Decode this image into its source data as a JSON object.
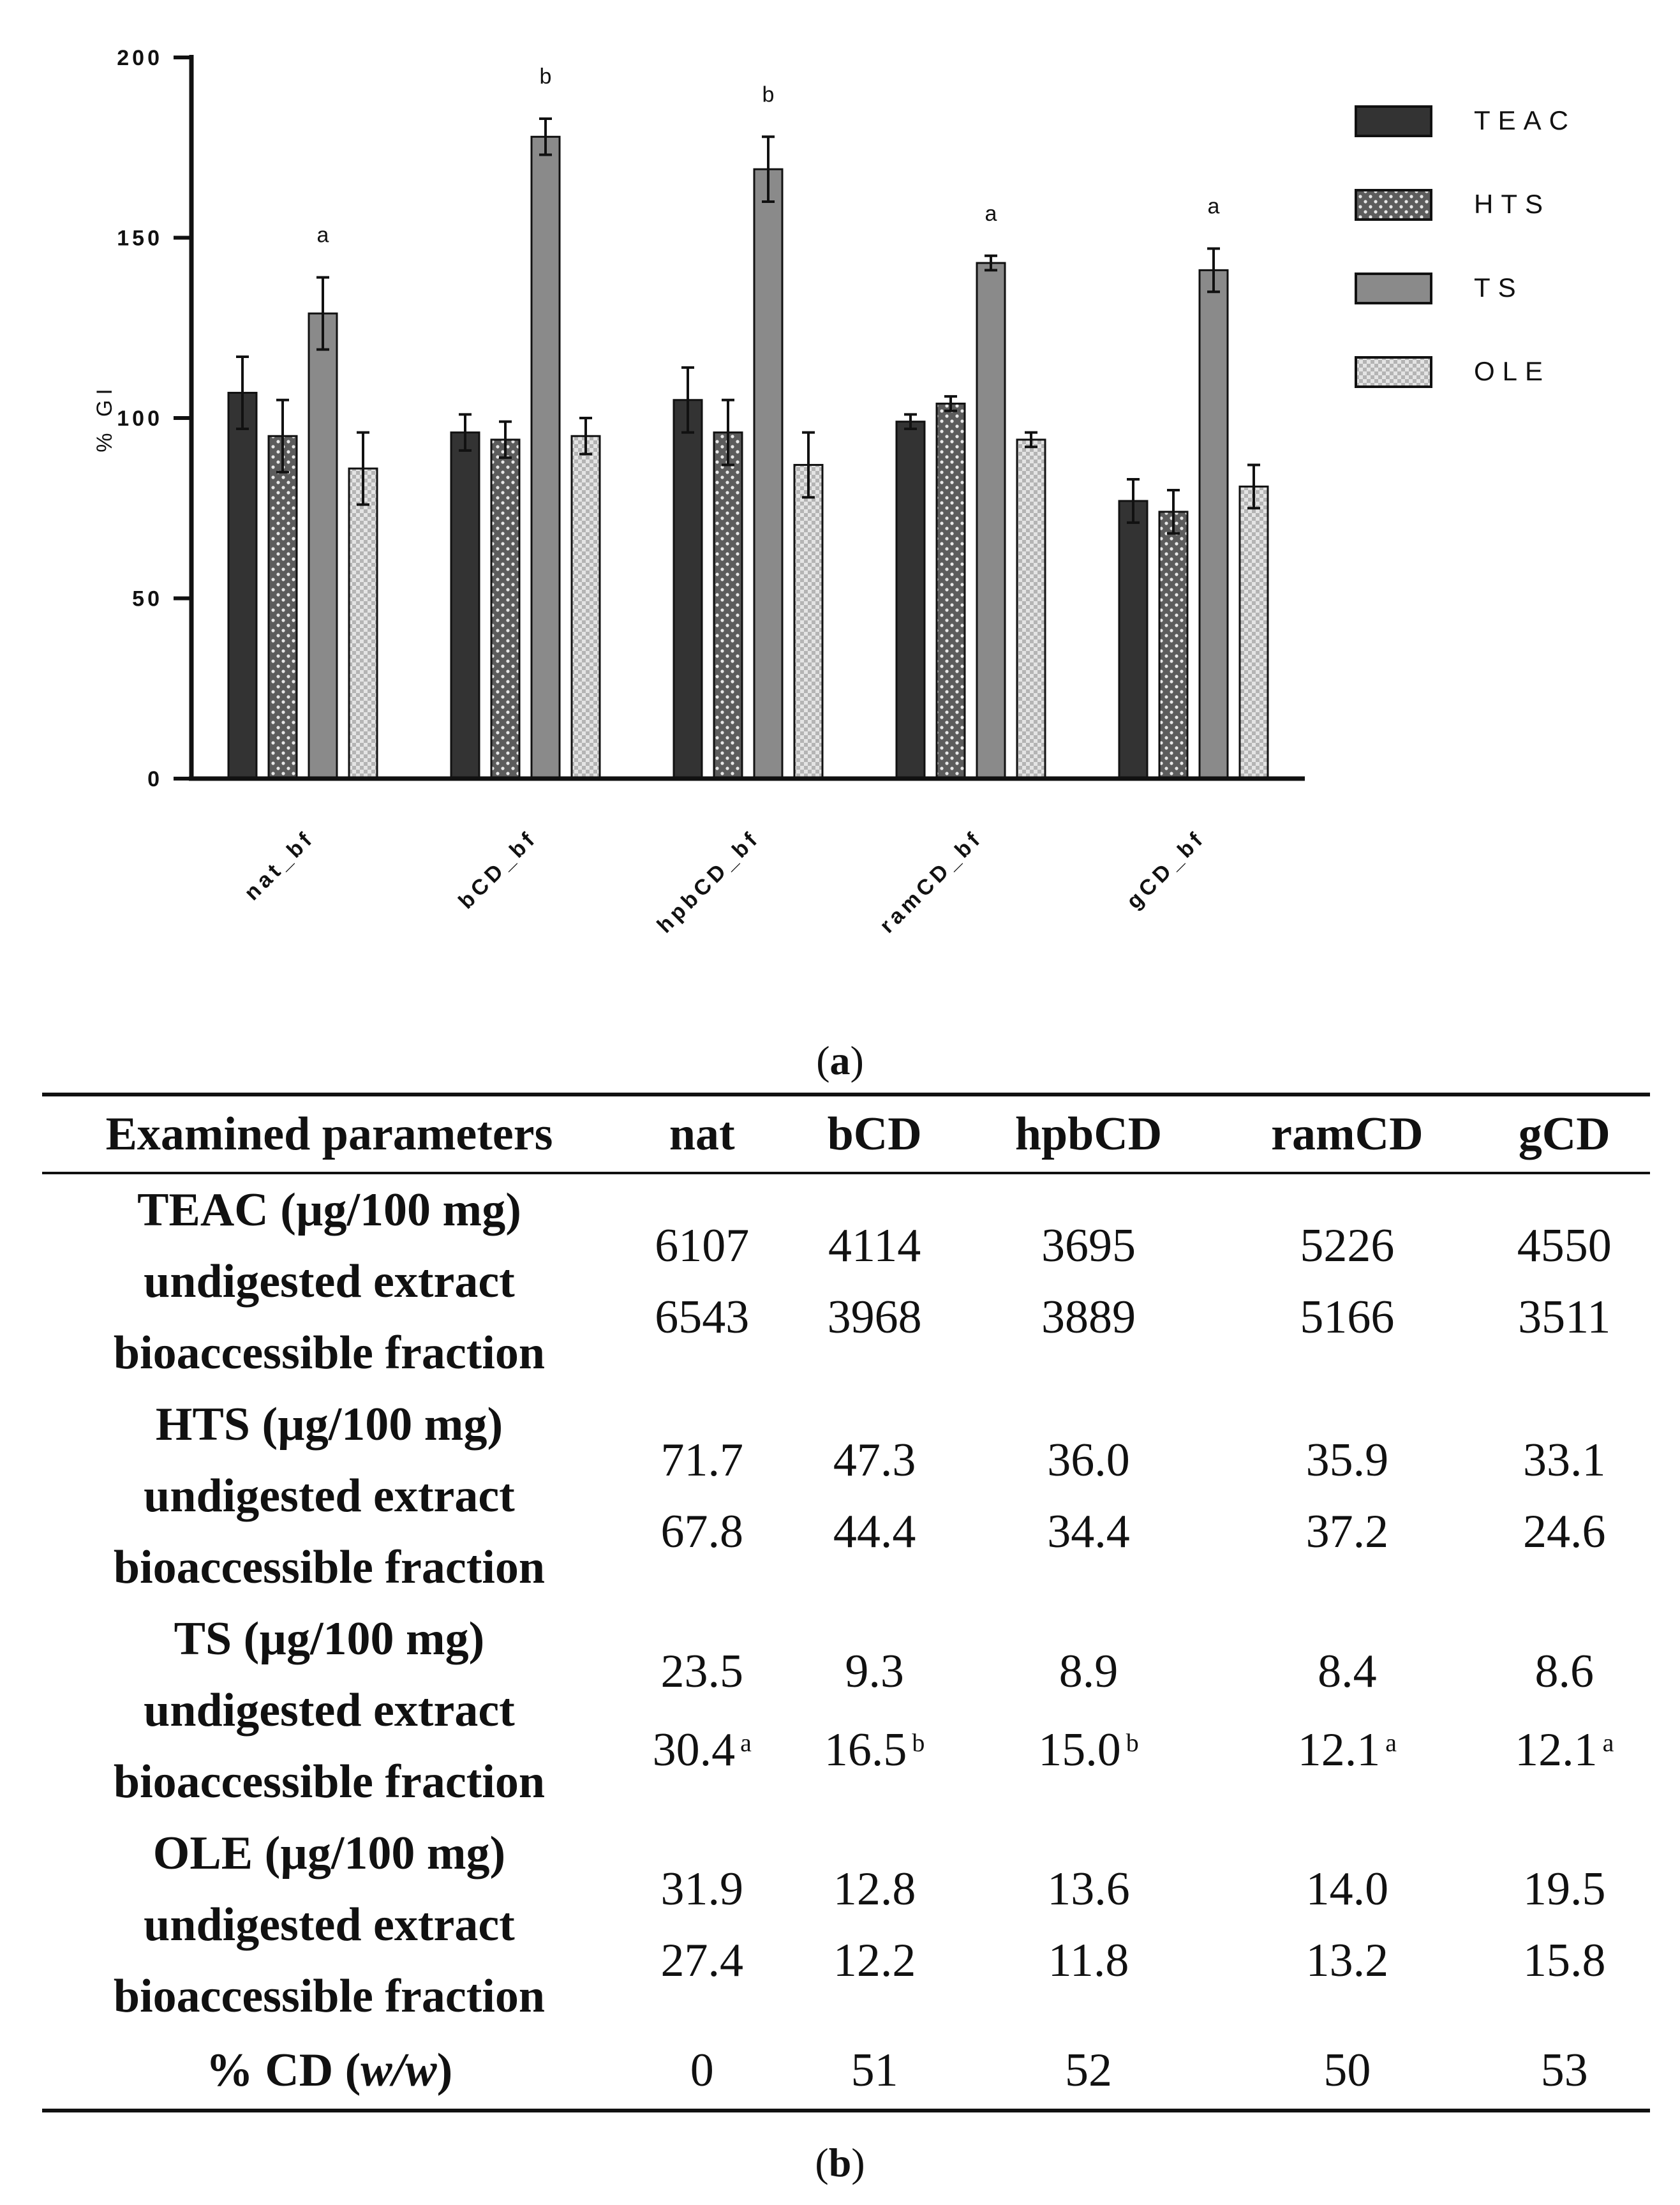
{
  "chart_data": {
    "type": "bar",
    "ylabel": "% GI",
    "ylim": [
      0,
      200
    ],
    "yticks": [
      0,
      50,
      100,
      150,
      200
    ],
    "categories": [
      "nat_bf",
      "bCD_bf",
      "hpbCD_bf",
      "ramCD_bf",
      "gCD_bf"
    ],
    "series": [
      {
        "name": "TEAC",
        "color": "#333333",
        "pattern": "solid",
        "values": [
          107,
          96,
          105,
          99,
          77
        ],
        "errors": [
          10,
          5,
          9,
          2,
          6
        ]
      },
      {
        "name": "HTS",
        "color": "#666666",
        "pattern": "dots",
        "values": [
          95,
          94,
          96,
          104,
          74
        ],
        "errors": [
          10,
          5,
          9,
          2,
          6
        ]
      },
      {
        "name": "TS",
        "color": "#8a8a8a",
        "pattern": "solid",
        "values": [
          129,
          178,
          169,
          143,
          141
        ],
        "errors": [
          10,
          5,
          9,
          2,
          6
        ]
      },
      {
        "name": "OLE",
        "color": "#c8c8c8",
        "pattern": "checker",
        "values": [
          86,
          95,
          87,
          94,
          81
        ],
        "errors": [
          10,
          5,
          9,
          2,
          6
        ]
      }
    ],
    "annotations": [
      {
        "category": "nat_bf",
        "series": "TS",
        "text": "a"
      },
      {
        "category": "bCD_bf",
        "series": "TS",
        "text": "b"
      },
      {
        "category": "hpbCD_bf",
        "series": "TS",
        "text": "b"
      },
      {
        "category": "ramCD_bf",
        "series": "TS",
        "text": "a"
      },
      {
        "category": "gCD_bf",
        "series": "TS",
        "text": "a"
      }
    ],
    "legend_position": "top-right"
  },
  "labels": {
    "panel_a": "a",
    "panel_b": "b"
  },
  "table": {
    "headers": [
      "Examined parameters",
      "nat",
      "bCD",
      "hpbCD",
      "ramCD",
      "gCD"
    ],
    "groups": [
      {
        "title": "TEAC (µg/100 mg)",
        "row1_label": "undigested extract",
        "row2_label": "bioaccessible fraction",
        "undigested": [
          "6107",
          "4114",
          "3695",
          "5226",
          "4550"
        ],
        "bioaccessible": [
          "6543",
          "3968",
          "3889",
          "5166",
          "3511"
        ],
        "sig": [
          "",
          "",
          "",
          "",
          ""
        ]
      },
      {
        "title": "HTS (µg/100 mg)",
        "row1_label": "undigested extract",
        "row2_label": "bioaccessible fraction",
        "undigested": [
          "71.7",
          "47.3",
          "36.0",
          "35.9",
          "33.1"
        ],
        "bioaccessible": [
          "67.8",
          "44.4",
          "34.4",
          "37.2",
          "24.6"
        ],
        "sig": [
          "",
          "",
          "",
          "",
          ""
        ]
      },
      {
        "title": "TS (µg/100 mg)",
        "row1_label": "undigested extract",
        "row2_label": "bioaccessible fraction",
        "undigested": [
          "23.5",
          "9.3",
          "8.9",
          "8.4",
          "8.6"
        ],
        "bioaccessible": [
          "30.4",
          "16.5",
          "15.0",
          "12.1",
          "12.1"
        ],
        "sig": [
          "a",
          "b",
          "b",
          "a",
          "a"
        ]
      },
      {
        "title": "OLE (µg/100 mg)",
        "row1_label": "undigested extract",
        "row2_label": "bioaccessible fraction",
        "undigested": [
          "31.9",
          "12.8",
          "13.6",
          "14.0",
          "19.5"
        ],
        "bioaccessible": [
          "27.4",
          "12.2",
          "11.8",
          "13.2",
          "15.8"
        ],
        "sig": [
          "",
          "",
          "",
          "",
          ""
        ]
      }
    ],
    "cd_row": {
      "label_prefix": "% CD (",
      "label_italic": "w/w",
      "label_suffix": ")",
      "values": [
        "0",
        "51",
        "52",
        "50",
        "53"
      ]
    }
  }
}
